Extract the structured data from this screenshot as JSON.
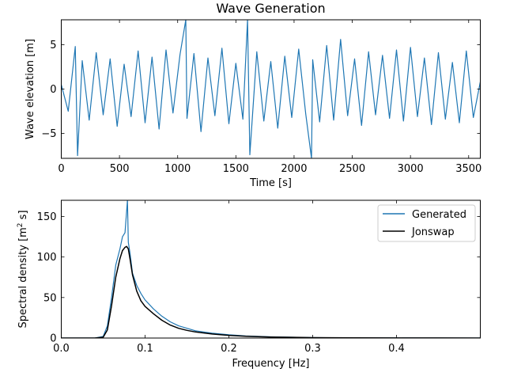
{
  "chart_data": [
    {
      "type": "line",
      "title": "Wave Generation",
      "xlabel": "Time [s]",
      "ylabel": "Wave elevation [m]",
      "xlim": [
        0,
        3600
      ],
      "ylim": [
        -7.8,
        7.8
      ],
      "xticks": [
        0,
        500,
        1000,
        1500,
        2000,
        2500,
        3000,
        3500
      ],
      "xtick_labels": [
        "0",
        "500",
        "1000",
        "1500",
        "2000",
        "2500",
        "3000",
        "3500"
      ],
      "yticks": [
        -5,
        0,
        5
      ],
      "ytick_labels": [
        "−5",
        "0",
        "5"
      ],
      "grid": false,
      "series": [
        {
          "color": "#1f77b4",
          "x": [
            0,
            60,
            120,
            140,
            180,
            240,
            300,
            360,
            420,
            480,
            540,
            600,
            660,
            720,
            780,
            840,
            900,
            960,
            1020,
            1070,
            1080,
            1140,
            1200,
            1260,
            1320,
            1380,
            1440,
            1500,
            1560,
            1600,
            1620,
            1680,
            1740,
            1800,
            1860,
            1920,
            1980,
            2040,
            2100,
            2150,
            2160,
            2220,
            2280,
            2340,
            2400,
            2460,
            2520,
            2580,
            2640,
            2700,
            2760,
            2820,
            2880,
            2940,
            3000,
            3060,
            3120,
            3180,
            3240,
            3300,
            3360,
            3420,
            3480,
            3540,
            3600
          ],
          "y": [
            0.5,
            -2.5,
            4.8,
            -7.5,
            3.2,
            -3.5,
            4.1,
            -2.9,
            3.4,
            -4.2,
            2.8,
            -3.1,
            4.3,
            -3.8,
            3.6,
            -4.5,
            4.4,
            -2.7,
            3.9,
            7.8,
            -3.3,
            4.0,
            -4.8,
            3.5,
            -3.0,
            4.6,
            -3.9,
            2.9,
            -3.4,
            7.8,
            -7.4,
            4.2,
            -3.6,
            3.1,
            -4.4,
            3.7,
            -3.2,
            4.5,
            -2.8,
            -7.8,
            3.3,
            -3.7,
            4.9,
            -3.5,
            5.6,
            -3.0,
            3.4,
            -4.1,
            4.2,
            -2.9,
            3.8,
            -3.3,
            4.4,
            -3.6,
            4.7,
            -3.1,
            3.5,
            -4.0,
            4.1,
            -3.4,
            3.0,
            -3.8,
            4.3,
            -3.2,
            0.8
          ]
        }
      ]
    },
    {
      "type": "line",
      "title": "",
      "xlabel": "Frequency [Hz]",
      "ylabel_main": "Spectral density [m",
      "ylabel_sup": "2",
      "ylabel_tail": " s]",
      "xlim": [
        0,
        0.5
      ],
      "ylim": [
        0,
        170
      ],
      "xticks": [
        0.0,
        0.1,
        0.2,
        0.3,
        0.4
      ],
      "xtick_labels": [
        "0.0",
        "0.1",
        "0.2",
        "0.3",
        "0.4"
      ],
      "yticks": [
        0,
        50,
        100,
        150
      ],
      "ytick_labels": [
        "0",
        "50",
        "100",
        "150"
      ],
      "grid": false,
      "legend_position": "top-right",
      "series": [
        {
          "name": "Generated",
          "color": "#1f77b4",
          "x": [
            0.0,
            0.04,
            0.05,
            0.055,
            0.06,
            0.065,
            0.07,
            0.073,
            0.076,
            0.079,
            0.08,
            0.082,
            0.085,
            0.09,
            0.095,
            0.1,
            0.11,
            0.12,
            0.13,
            0.14,
            0.15,
            0.16,
            0.18,
            0.2,
            0.22,
            0.25,
            0.3,
            0.35,
            0.4,
            0.45,
            0.5
          ],
          "y": [
            0,
            0,
            2,
            15,
            50,
            90,
            110,
            125,
            130,
            170,
            118,
            105,
            80,
            65,
            55,
            47,
            36,
            27,
            20,
            15,
            12,
            9,
            6,
            4,
            2.5,
            1.5,
            0.5,
            0.2,
            0.1,
            0,
            0
          ]
        },
        {
          "name": "Jonswap",
          "color": "#000000",
          "x": [
            0.0,
            0.04,
            0.05,
            0.055,
            0.06,
            0.065,
            0.07,
            0.073,
            0.076,
            0.078,
            0.08,
            0.082,
            0.085,
            0.09,
            0.095,
            0.1,
            0.11,
            0.12,
            0.13,
            0.14,
            0.15,
            0.16,
            0.18,
            0.2,
            0.22,
            0.25,
            0.3,
            0.35,
            0.4,
            0.45,
            0.5
          ],
          "y": [
            0,
            0,
            1,
            10,
            40,
            75,
            98,
            108,
            112,
            113,
            110,
            98,
            78,
            58,
            46,
            39,
            30,
            22,
            16,
            12,
            9.5,
            7.5,
            5,
            3.3,
            2.2,
            1.3,
            0.5,
            0.2,
            0.1,
            0.05,
            0
          ]
        }
      ]
    }
  ]
}
